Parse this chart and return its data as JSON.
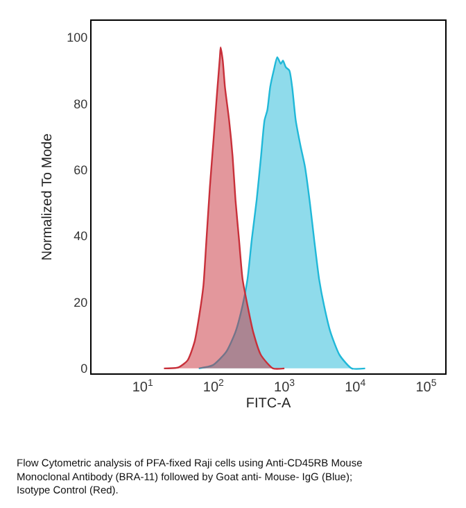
{
  "chart_data": {
    "type": "area",
    "xlabel": "FITC-A",
    "ylabel": "Normalized To Mode",
    "log": "x",
    "marker": "none",
    "xlim": [
      1.9,
      186000
    ],
    "ylim": [
      -1.5,
      105
    ],
    "xticks": [
      {
        "value": 10,
        "label": "10$^{1}$"
      },
      {
        "value": 100,
        "label": "10$^{2}$"
      },
      {
        "value": 1000,
        "label": "10$^{3}$"
      },
      {
        "value": 10000,
        "label": "10$^{4}$"
      },
      {
        "value": 100000,
        "label": "10$^{5}$"
      }
    ],
    "yticks": [
      0,
      20,
      40,
      60,
      80,
      100
    ],
    "series": [
      {
        "color": "#20b8d8",
        "x": [
          62,
          98,
          151,
          204,
          257,
          302,
          347,
          407,
          468,
          525,
          575,
          631,
          708,
          794,
          891,
          955,
          1047,
          1175,
          1288,
          1445,
          1698,
          1950,
          2291,
          2630,
          3090,
          3631,
          4467,
          6026,
          8913,
          13800
        ],
        "values": [
          0,
          1,
          5,
          11,
          19,
          27,
          39,
          51,
          64,
          75,
          78,
          85,
          90,
          94,
          92,
          93,
          91,
          90,
          85,
          75,
          67,
          61,
          50,
          39,
          27,
          19,
          11,
          4,
          0,
          0
        ]
      },
      {
        "color": "#c8303a",
        "x": [
          20,
          32,
          43,
          54,
          63,
          72,
          79,
          89,
          100,
          112,
          123,
          126,
          135,
          145,
          166,
          186,
          204,
          229,
          257,
          302,
          363,
          468,
          692,
          1000
        ],
        "values": [
          0,
          0.3,
          2.4,
          8,
          16,
          25,
          38,
          55,
          69,
          83,
          94,
          97,
          93,
          85,
          75,
          64,
          51,
          39,
          27,
          19,
          11,
          4,
          0,
          0
        ]
      }
    ],
    "annotations": [
      "Flow Cytometric analysis of PFA-fixed Raji cells using Anti-CD45RB Mouse Monoclonal Antibody (BRA-11) followed by Goat anti- Mouse- IgG (Blue); Isotype Control (Red)."
    ]
  }
}
